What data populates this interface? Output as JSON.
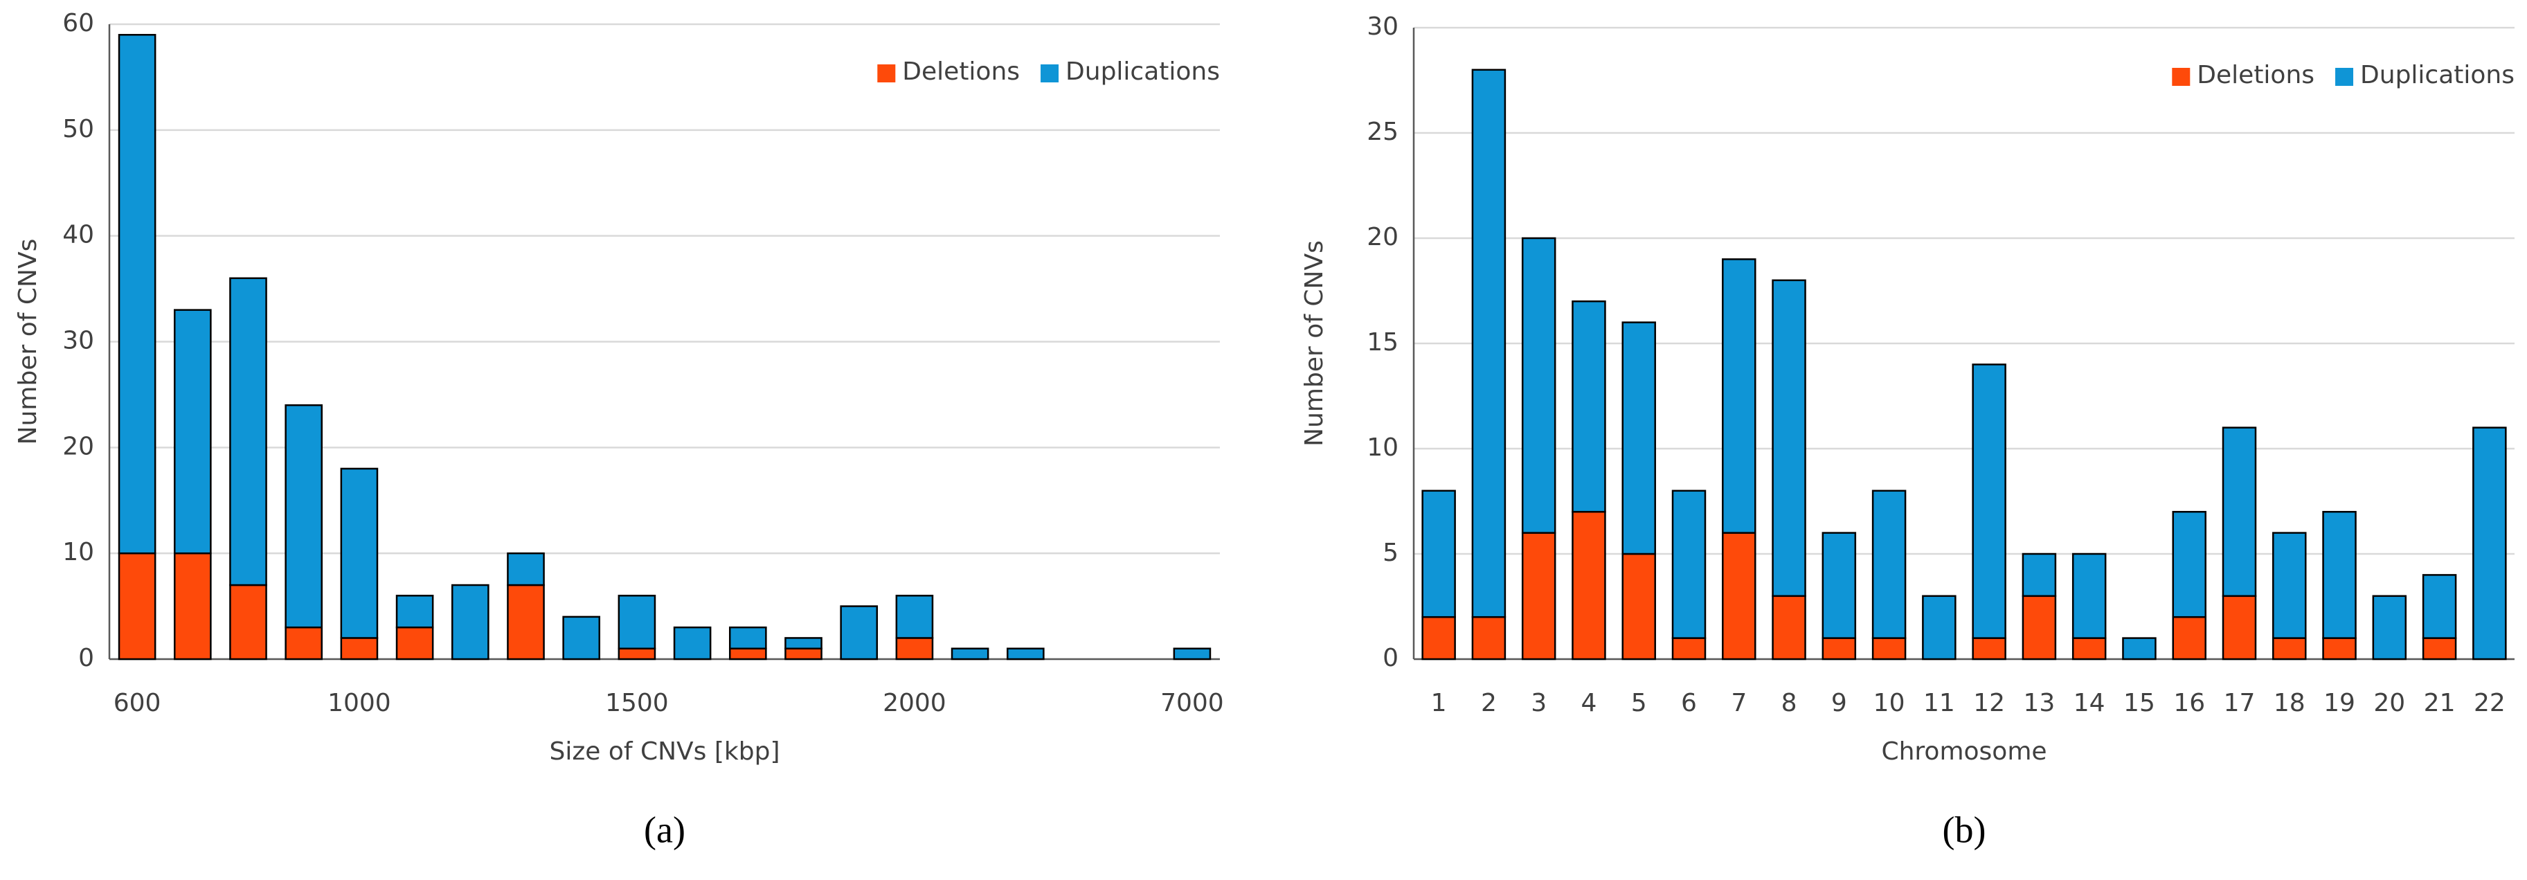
{
  "chart_data": [
    {
      "type": "stacked_bar",
      "caption": "(a)",
      "x_label": "Size of CNVs [kbp]",
      "y_label": "Number of CNVs",
      "categories": [
        "600",
        null,
        null,
        null,
        "1000",
        null,
        null,
        null,
        null,
        "1500",
        null,
        null,
        null,
        null,
        "2000",
        null,
        null,
        null,
        null,
        "7000"
      ],
      "series": [
        {
          "name": "Deletions",
          "color": "#fe4a0a",
          "values": [
            10,
            10,
            7,
            3,
            2,
            3,
            0,
            7,
            0,
            1,
            0,
            1,
            1,
            0,
            2,
            0,
            0,
            0,
            0,
            0
          ]
        },
        {
          "name": "Duplications",
          "color": "#0f95d6",
          "values": [
            49,
            23,
            29,
            21,
            16,
            3,
            7,
            3,
            4,
            5,
            3,
            2,
            1,
            5,
            4,
            1,
            1,
            0,
            0,
            1
          ]
        }
      ],
      "ylim": [
        0,
        60
      ],
      "yticks": [
        0,
        10,
        20,
        30,
        40,
        50,
        60
      ],
      "grid": true,
      "legend": "top-right"
    },
    {
      "type": "stacked_bar",
      "caption": "(b)",
      "x_label": "Chromosome",
      "y_label": "Number of CNVs",
      "categories": [
        "1",
        "2",
        "3",
        "4",
        "5",
        "6",
        "7",
        "8",
        "9",
        "10",
        "11",
        "12",
        "13",
        "14",
        "15",
        "16",
        "17",
        "18",
        "19",
        "20",
        "21",
        "22"
      ],
      "series": [
        {
          "name": "Deletions",
          "color": "#fe4a0a",
          "values": [
            2,
            2,
            6,
            7,
            5,
            1,
            6,
            3,
            1,
            1,
            0,
            1,
            3,
            1,
            0,
            2,
            3,
            1,
            1,
            0,
            1,
            0
          ]
        },
        {
          "name": "Duplications",
          "color": "#0f95d6",
          "values": [
            6,
            26,
            14,
            10,
            11,
            7,
            13,
            15,
            5,
            7,
            3,
            13,
            2,
            4,
            1,
            5,
            8,
            5,
            6,
            3,
            3,
            11
          ]
        }
      ],
      "ylim": [
        0,
        30
      ],
      "yticks": [
        0,
        5,
        10,
        15,
        20,
        25,
        30
      ],
      "grid": true,
      "legend": "top-right"
    }
  ]
}
